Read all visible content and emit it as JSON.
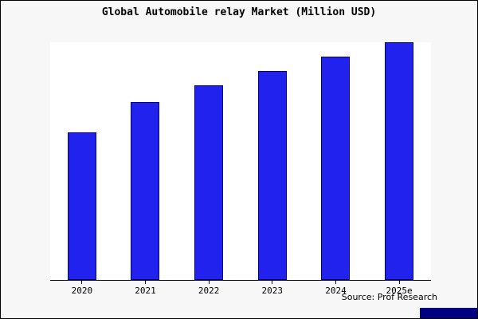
{
  "title": "Global Automobile relay Market (Million USD)",
  "source_label": "Source: Prof Research",
  "colors": {
    "bar_fill": "#2222ee",
    "bar_edge": "#000080",
    "background": "#f7f7f7",
    "plot_background": "#ffffff",
    "brand_box": "#000080"
  },
  "chart_data": {
    "type": "bar",
    "categories": [
      "2020",
      "2021",
      "2022",
      "2023",
      "2024",
      "2025e"
    ],
    "values": [
      62,
      75,
      82,
      88,
      94,
      100
    ],
    "title": "Global Automobile relay Market (Million USD)",
    "xlabel": "",
    "ylabel": "",
    "ylim": [
      0,
      100
    ],
    "grid": false,
    "legend": false,
    "note": "No y-axis tick labels visible; values are relative estimates with tallest bar (2025e) = 100"
  }
}
